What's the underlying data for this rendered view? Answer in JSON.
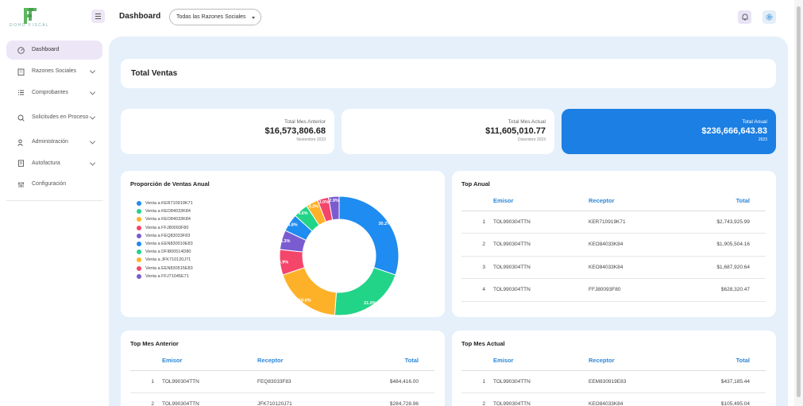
{
  "brand": {
    "logo_text": "DOHO FISCAL",
    "accent": "#1b7fe3",
    "logo_color": "#5cb85c"
  },
  "sidebar": {
    "items": [
      {
        "label": "Dashboard",
        "icon": "dashboard-icon"
      },
      {
        "label": "Razones Sociales",
        "icon": "building-icon"
      },
      {
        "label": "Comprobantes",
        "icon": "list-icon"
      },
      {
        "label": "Solicitudes en Proceso",
        "icon": "search-clock-icon"
      },
      {
        "label": "Administración",
        "icon": "users-icon"
      },
      {
        "label": "Autofactura",
        "icon": "invoice-icon"
      },
      {
        "label": "Configuración",
        "icon": "sliders-icon"
      }
    ]
  },
  "header": {
    "title": "Dashboard",
    "razon_select": "Todas las Razones Sociales"
  },
  "total_ventas": {
    "title": "Total Ventas"
  },
  "kpis": [
    {
      "label": "Total Mes Anterior",
      "value": "$16,573,806.68",
      "sub": "Noviembre 2023"
    },
    {
      "label": "Total Mes Actual",
      "value": "$11,605,010.77",
      "sub": "Diciembre 2023"
    },
    {
      "label": "Total Anual",
      "value": "$236,666,643.83",
      "sub": "2023"
    }
  ],
  "proporcion": {
    "title": "Proporción de Ventas Anual"
  },
  "chart_data": {
    "type": "pie",
    "title": "Proporción de Ventas Anual",
    "legend_position": "left",
    "series": [
      {
        "name": "Venta a KER710919K71",
        "value": 30.2,
        "label": "30.2%",
        "color": "#1e8cf0"
      },
      {
        "name": "Venta a KEO84033K84",
        "value": 21.0,
        "label": "21.0%",
        "color": "#22d488"
      },
      {
        "name": "Venta a KEO84033K84",
        "value": 18.6,
        "label": "18.6%",
        "color": "#fdb128"
      },
      {
        "name": "Venta a FFJ80093F80",
        "value": 6.9,
        "label": "6.9%",
        "color": "#f4456b"
      },
      {
        "name": "Venta a FEQ83033F83",
        "value": 5.3,
        "label": "5.3%",
        "color": "#7a5cd0"
      },
      {
        "name": "Venta a EEN830010E83",
        "value": 4.8,
        "label": "4.8%",
        "color": "#1e8cf0"
      },
      {
        "name": "Venta a DFI800514D80",
        "value": 4.0,
        "label": "4.0%",
        "color": "#22d488"
      },
      {
        "name": "Venta a JFK710120J71",
        "value": 3.3,
        "label": "3.3%",
        "color": "#fdb128"
      },
      {
        "name": "Venta a EEN830515E83",
        "value": 3.0,
        "label": "3.0%",
        "color": "#f4456b"
      },
      {
        "name": "Venta a FFJ71045E71",
        "value": 2.9,
        "label": "2.9%",
        "color": "#7a5cd0"
      }
    ]
  },
  "top_anual": {
    "title": "Top Anual",
    "headers": {
      "emisor": "Emisor",
      "receptor": "Receptor",
      "total": "Total"
    },
    "rows": [
      {
        "n": "1",
        "emisor": "TOL990304TTN",
        "receptor": "KER710919K71",
        "total": "$2,743,925.99"
      },
      {
        "n": "2",
        "emisor": "TOL990304TTN",
        "receptor": "KEO84033K84",
        "total": "$1,905,504.16"
      },
      {
        "n": "3",
        "emisor": "TOL990304TTN",
        "receptor": "KEO84033K84",
        "total": "$1,687,920.64"
      },
      {
        "n": "4",
        "emisor": "TOL990304TTN",
        "receptor": "FFJ80093F80",
        "total": "$628,320.47"
      }
    ]
  },
  "top_mes_anterior": {
    "title": "Top Mes Anterior",
    "headers": {
      "emisor": "Emisor",
      "receptor": "Receptor",
      "total": "Total"
    },
    "rows": [
      {
        "n": "1",
        "emisor": "TOL990304TTN",
        "receptor": "FEQ83033F83",
        "total": "$484,416.00"
      },
      {
        "n": "2",
        "emisor": "TOL990304TTN",
        "receptor": "JFK710120J71",
        "total": "$284,728.96"
      }
    ]
  },
  "top_mes_actual": {
    "title": "Top Mes Actual",
    "headers": {
      "emisor": "Emisor",
      "receptor": "Receptor",
      "total": "Total"
    },
    "rows": [
      {
        "n": "1",
        "emisor": "TOL990304TTN",
        "receptor": "EEM830919E83",
        "total": "$437,185.44"
      },
      {
        "n": "2",
        "emisor": "TOL990304TTN",
        "receptor": "KEO84033K84",
        "total": "$105,495.04"
      }
    ]
  }
}
